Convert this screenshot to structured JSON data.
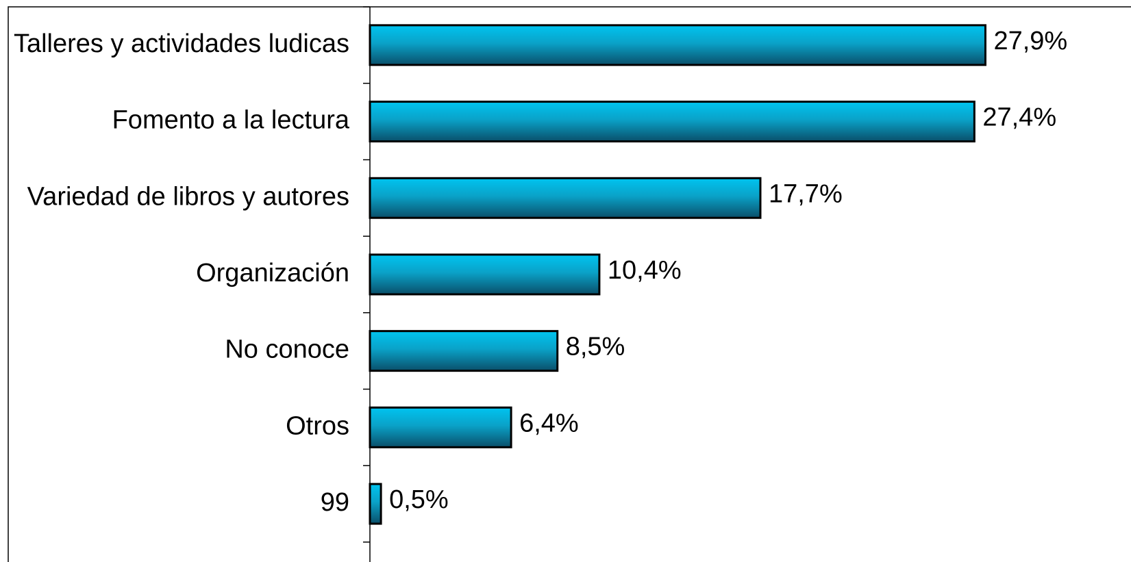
{
  "chart_data": {
    "type": "barh",
    "categories": [
      "Talleres y actividades ludicas",
      "Fomento a la lectura",
      "Variedad de libros y autores",
      "Organización",
      "No conoce",
      "Otros",
      "99"
    ],
    "values": [
      27.9,
      27.4,
      17.7,
      10.4,
      8.5,
      6.4,
      0.5
    ],
    "value_labels": [
      "27,9%",
      "27,4%",
      "17,7%",
      "10,4%",
      "8,5%",
      "6,4%",
      "0,5%"
    ],
    "color": "#00c4f0",
    "xlim": [
      0,
      34.5
    ]
  }
}
